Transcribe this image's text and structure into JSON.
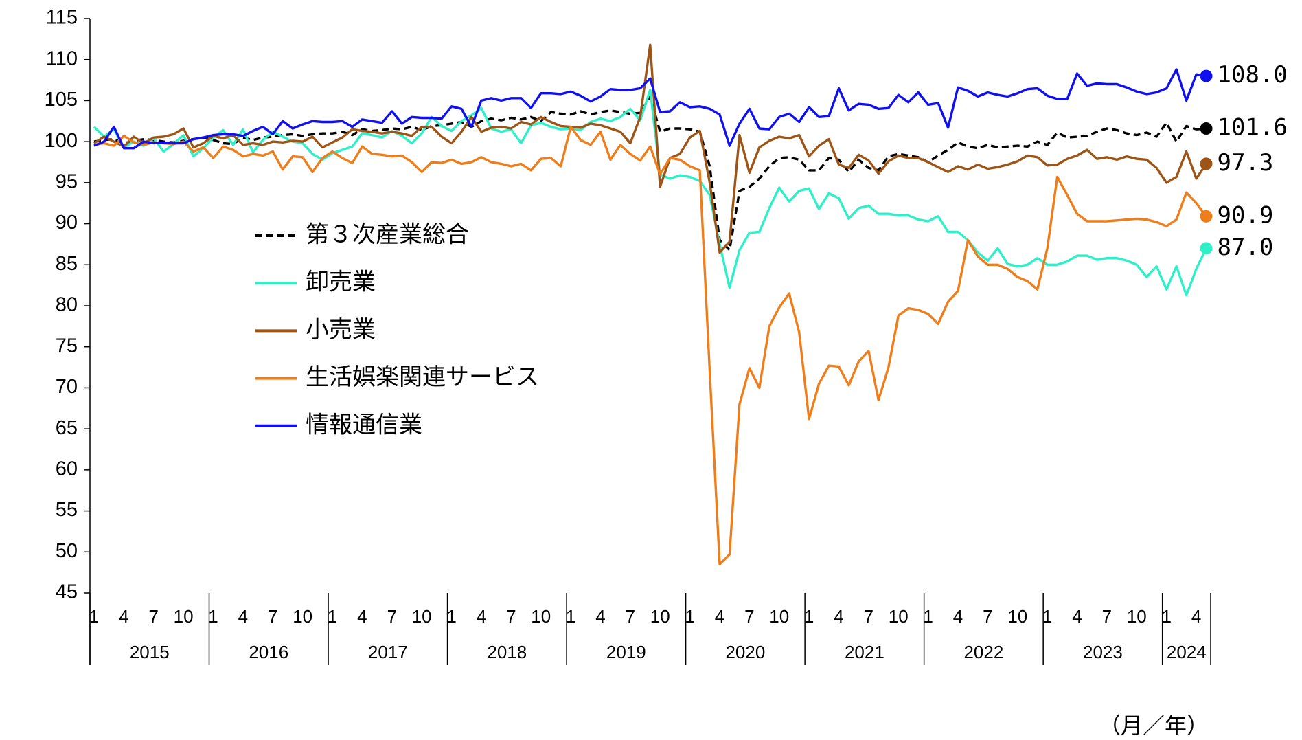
{
  "chart_data": {
    "type": "line",
    "categories": [
      "1",
      null,
      null,
      "4",
      null,
      null,
      "7",
      null,
      null,
      "10",
      null,
      null,
      "1",
      null,
      null,
      "4",
      null,
      null,
      "7",
      null,
      null,
      "10",
      null,
      null,
      "1",
      null,
      null,
      "4",
      null,
      null,
      "7",
      null,
      null,
      "10",
      null,
      null,
      "1",
      null,
      null,
      "4",
      null,
      null,
      "7",
      null,
      null,
      "10",
      null,
      null,
      "1",
      null,
      null,
      "4",
      null,
      null,
      "7",
      null,
      null,
      "10",
      null,
      null,
      "1",
      null,
      null,
      "4",
      null,
      null,
      "7",
      null,
      null,
      "10",
      null,
      null,
      "1",
      null,
      null,
      "4",
      null,
      null,
      "7",
      null,
      null,
      "10",
      null,
      null,
      "1",
      null,
      null,
      "4",
      null,
      null,
      "7",
      null,
      null,
      "10",
      null,
      null,
      "1",
      null,
      null,
      "4",
      null,
      null,
      "7",
      null,
      null,
      "10",
      null,
      null,
      "1",
      null,
      null,
      "4",
      null
    ],
    "years": [
      "2015",
      "2016",
      "2017",
      "2018",
      "2019",
      "2020",
      "2021",
      "2022",
      "2023",
      "2024"
    ],
    "x_unit_note": "（月／年）",
    "ylim": [
      45,
      115
    ],
    "yticks": [
      45,
      50,
      55,
      60,
      65,
      70,
      75,
      80,
      85,
      90,
      95,
      100,
      105,
      110,
      115
    ],
    "grid": false,
    "series": [
      {
        "name": "第３次産業総合",
        "color": "#000000",
        "dash": true,
        "end_label": "101.6",
        "values": [
          100,
          100.2,
          100.3,
          99.8,
          100.1,
          100.3,
          100.2,
          100,
          99.9,
          100.1,
          100.3,
          100.5,
          100.2,
          99.8,
          99.7,
          100.5,
          100.2,
          100.5,
          100.6,
          100.8,
          100.9,
          100.7,
          100.9,
          101,
          101,
          101.2,
          100.8,
          101.5,
          101.3,
          101.4,
          101.6,
          101.5,
          101.8,
          101.4,
          101.9,
          102,
          102.2,
          102.4,
          101.8,
          102.5,
          102.8,
          102.6,
          102.9,
          102.7,
          103,
          102.5,
          103.6,
          103.4,
          103.3,
          103.7,
          103.3,
          103.6,
          103.8,
          103.6,
          103.4,
          103.5,
          105.5,
          101.2,
          101.6,
          101.6,
          101.5,
          101.2,
          97,
          88,
          86.8,
          94,
          94.5,
          95.5,
          97,
          98,
          98.1,
          97.8,
          96.5,
          96.5,
          98,
          97.8,
          96.3,
          97.8,
          96.8,
          96.5,
          98.2,
          98.5,
          98.3,
          98.1,
          97.5,
          98.3,
          99,
          99.9,
          99.4,
          99.2,
          99.6,
          99.3,
          99.4,
          99.5,
          99.4,
          100,
          99.6,
          101.1,
          100.5,
          100.6,
          100.7,
          101.2,
          101.6,
          101.4,
          101,
          100.8,
          101.1,
          100.6,
          102.3,
          100,
          101.9,
          101.5,
          101.6
        ]
      },
      {
        "name": "卸売業",
        "color": "#2ef0c8",
        "dash": false,
        "end_label": "87.0",
        "values": [
          101.8,
          100.6,
          101.5,
          99.3,
          100,
          99.5,
          100.4,
          98.8,
          99.7,
          100.8,
          98.2,
          99.2,
          100.5,
          101.4,
          99.6,
          101.5,
          98.7,
          100.2,
          101.2,
          100.6,
          100,
          99.8,
          98.5,
          97.8,
          98.6,
          99,
          99.4,
          101,
          100.8,
          100.5,
          101.3,
          100.7,
          99.8,
          101,
          103,
          101.9,
          101.3,
          102.5,
          103.2,
          104.1,
          101.6,
          101.2,
          101.5,
          99.8,
          102,
          102.3,
          101.8,
          101.5,
          101.6,
          101.4,
          102.4,
          102.8,
          102.5,
          103,
          104,
          102.6,
          106.3,
          96,
          95.5,
          95.9,
          95.7,
          95.2,
          93.5,
          87.5,
          82.2,
          86.8,
          88.9,
          89,
          91.9,
          94.4,
          92.7,
          94,
          94.3,
          91.8,
          93.7,
          93.1,
          90.6,
          91.9,
          92.2,
          91.2,
          91.2,
          91,
          91,
          90.5,
          90.3,
          90.9,
          89,
          89,
          88,
          86.5,
          85.5,
          87,
          85.1,
          84.8,
          85,
          85.8,
          85,
          85,
          85.4,
          86.1,
          86.1,
          85.6,
          85.8,
          85.8,
          85.5,
          85,
          83.5,
          84.8,
          82,
          84.8,
          81.3,
          84.5,
          87
        ]
      },
      {
        "name": "小売業",
        "color": "#9c5516",
        "dash": false,
        "end_label": "97.3",
        "values": [
          99.8,
          100.6,
          100,
          99.4,
          100.6,
          99.8,
          100.5,
          100.6,
          100.9,
          101.6,
          99.3,
          99.8,
          100.7,
          100.4,
          100.8,
          99.6,
          99.8,
          99.6,
          100,
          99.9,
          100.1,
          100,
          100.6,
          99.3,
          99.9,
          100.5,
          101.5,
          101.3,
          101.2,
          101,
          101.2,
          101,
          100.7,
          101.8,
          101.8,
          100.6,
          99.8,
          101.2,
          103,
          101.2,
          101.7,
          101.8,
          101.6,
          102.4,
          102.1,
          103,
          102.4,
          101.9,
          101.8,
          101.7,
          102.2,
          102,
          101.6,
          101.2,
          99.8,
          103,
          111.8,
          94.5,
          98,
          98.5,
          100.5,
          101.3,
          95,
          86.5,
          87.8,
          100.8,
          96.2,
          99.3,
          100.1,
          100.6,
          100.4,
          100.8,
          98.2,
          99.5,
          100.3,
          97.2,
          96.8,
          98.4,
          97.7,
          96.1,
          97.6,
          98.3,
          98,
          98,
          97.5,
          96.9,
          96.3,
          97,
          96.6,
          97.2,
          96.7,
          96.9,
          97.2,
          97.6,
          98.3,
          98.1,
          97.1,
          97.2,
          97.9,
          98.3,
          99,
          97.9,
          98.1,
          97.8,
          98.2,
          97.9,
          97.8,
          96.8,
          95,
          95.7,
          98.8,
          95.5,
          97.3
        ]
      },
      {
        "name": "生活娯楽関連サービス",
        "color": "#ee7d1b",
        "dash": false,
        "end_label": "90.9",
        "values": [
          99.6,
          99.8,
          99.5,
          100.7,
          99.9,
          99.6,
          99.9,
          99.8,
          99.7,
          100,
          98.8,
          99.3,
          98,
          99.4,
          99,
          98.2,
          98.5,
          98.3,
          98.8,
          96.6,
          98.2,
          98.1,
          96.3,
          98,
          98.8,
          98,
          97.4,
          99.4,
          98.5,
          98.4,
          98.2,
          98.3,
          97.5,
          96.3,
          97.5,
          97.4,
          97.8,
          97.3,
          97.5,
          98.1,
          97.5,
          97.3,
          97,
          97.3,
          96.5,
          97.9,
          98,
          97,
          101.8,
          100.2,
          99.6,
          101.2,
          97.8,
          99.6,
          98.5,
          97.7,
          99.4,
          96,
          98,
          97.8,
          97,
          96.5,
          72,
          48.5,
          49.7,
          68,
          72.4,
          70,
          77.5,
          79.8,
          81.5,
          76.8,
          66.2,
          70.5,
          72.7,
          72.6,
          70.3,
          73.2,
          74.5,
          68.5,
          72.5,
          78.8,
          79.7,
          79.5,
          79,
          77.8,
          80.5,
          81.8,
          88,
          86,
          85,
          85,
          84.5,
          83.5,
          83,
          82,
          87,
          95.7,
          93.5,
          91.2,
          90.3,
          90.3,
          90.3,
          90.4,
          90.5,
          90.6,
          90.5,
          90.2,
          89.7,
          90.5,
          93.8,
          92.5,
          90.9
        ]
      },
      {
        "name": "情報通信業",
        "color": "#1010ee",
        "dash": false,
        "end_label": "108.0",
        "values": [
          99.5,
          100,
          101.8,
          99.2,
          99.2,
          100,
          99.8,
          99.9,
          99.8,
          99.8,
          100.3,
          100.5,
          100.8,
          100.9,
          100.9,
          100.7,
          101.3,
          101.8,
          100.9,
          102.5,
          101.6,
          102.1,
          102.5,
          102.4,
          102.4,
          102.5,
          101.8,
          102.7,
          102.5,
          102.3,
          103.7,
          102.2,
          103,
          102.9,
          102.9,
          102.8,
          104.3,
          104,
          101.8,
          105,
          105.3,
          105,
          105.3,
          105.3,
          104.1,
          105.9,
          105.9,
          105.8,
          106.1,
          105.6,
          104.9,
          105.5,
          106.4,
          106.3,
          106.3,
          106.5,
          107.7,
          103.6,
          103.7,
          104.8,
          104.2,
          104.3,
          104,
          103.3,
          99.5,
          102.2,
          104,
          101.6,
          101.5,
          103,
          103.4,
          102.4,
          104.2,
          103,
          103.1,
          106.5,
          103.8,
          104.6,
          104.5,
          104,
          104.1,
          105.7,
          104.8,
          106,
          104.5,
          104.7,
          101.7,
          106.6,
          106.2,
          105.5,
          106,
          105.7,
          105.5,
          105.9,
          106.4,
          106.5,
          105.6,
          105.2,
          105.2,
          108.3,
          106.8,
          107.1,
          107,
          107,
          106.6,
          106.1,
          105.8,
          106,
          106.5,
          108.8,
          105,
          108.2,
          108
        ]
      }
    ]
  }
}
